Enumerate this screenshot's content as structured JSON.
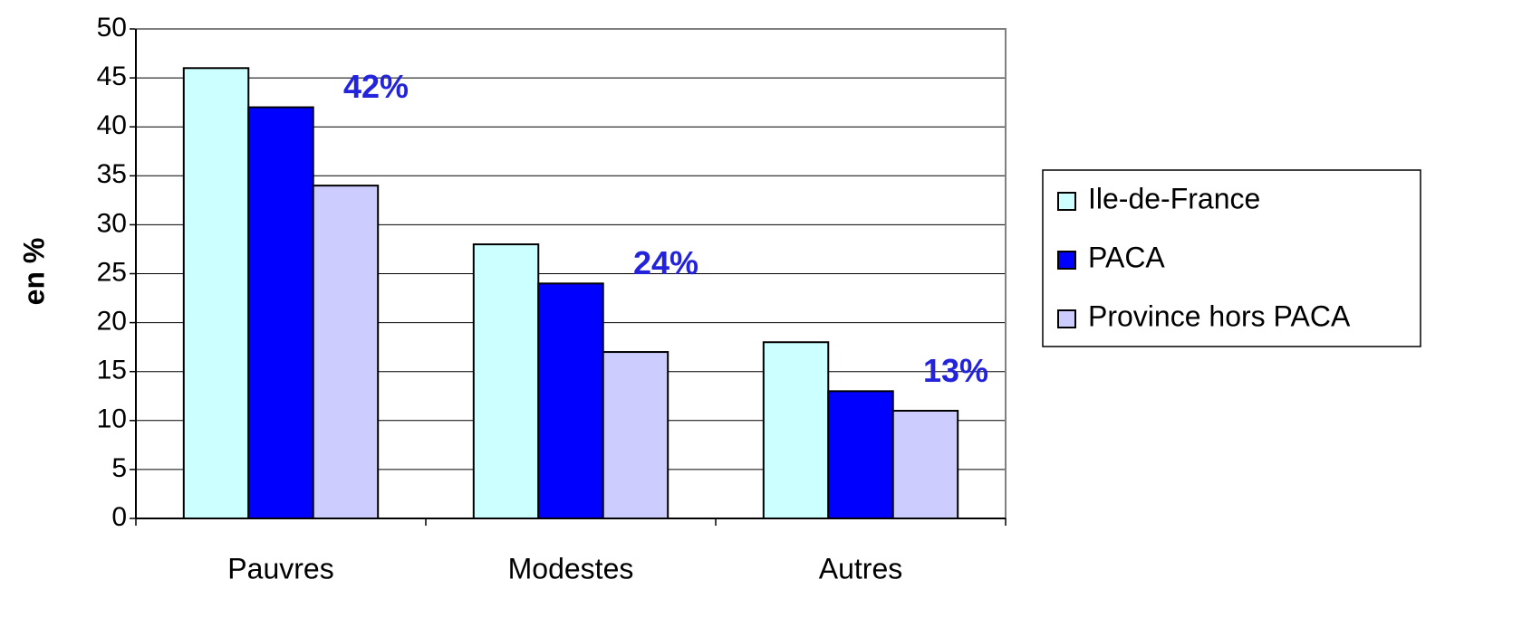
{
  "chart_data": {
    "type": "bar",
    "y_label": "en %",
    "categories": [
      "Pauvres",
      "Modestes",
      "Autres"
    ],
    "series": [
      {
        "name": "Ile-de-France",
        "color": "#ccffff",
        "values": [
          46,
          28,
          18
        ]
      },
      {
        "name": "PACA",
        "color": "#0000ff",
        "values": [
          42,
          24,
          13
        ],
        "value_labels": [
          "42%",
          "24%",
          "13%"
        ]
      },
      {
        "name": "Province hors PACA",
        "color": "#ccccff",
        "values": [
          34,
          17,
          11
        ]
      }
    ],
    "ylim": [
      0,
      50
    ],
    "yticks": [
      0,
      5,
      10,
      15,
      20,
      25,
      30,
      35,
      40,
      45,
      50
    ],
    "grid": true,
    "legend": "right"
  }
}
